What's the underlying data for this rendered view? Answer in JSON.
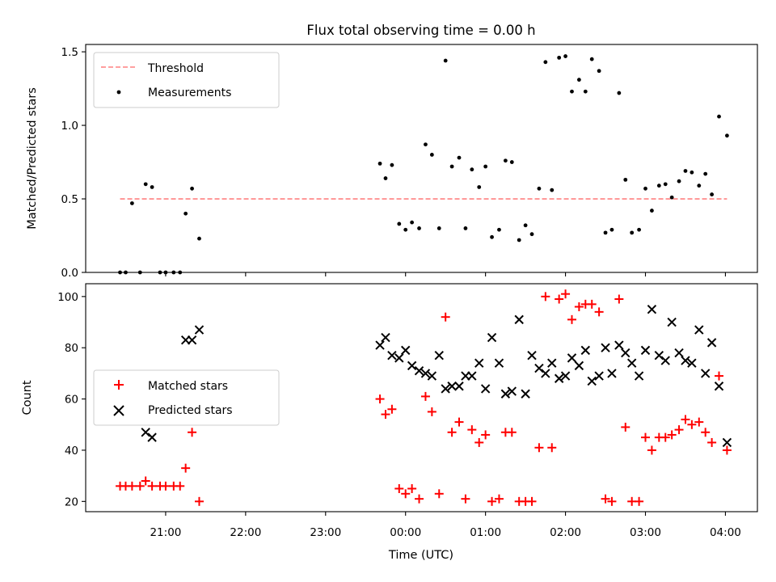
{
  "title": "Flux total observing time = 0.00 h",
  "x_label": "Time (UTC)",
  "x_tick_labels": [
    "21:00",
    "22:00",
    "23:00",
    "00:00",
    "01:00",
    "02:00",
    "03:00",
    "04:00"
  ],
  "colors": {
    "threshold": "#ff8080",
    "measurements": "#000000",
    "matched": "#ff0000",
    "predicted": "#000000"
  },
  "chart_data": [
    {
      "type": "scatter",
      "ylabel": "Matched/Predicted stars",
      "xlabel": "",
      "x_unit": "hours since 20:00 UTC",
      "xlim": [
        0.0,
        8.4
      ],
      "ylim": [
        0.0,
        1.55
      ],
      "y_ticks": [
        "0.0",
        "0.5",
        "1.0",
        "1.5"
      ],
      "grid": false,
      "legend_position": "top-left",
      "threshold": {
        "name": "Threshold",
        "value": 0.5,
        "x_range": [
          0.43,
          8.02
        ],
        "style": "dashed"
      },
      "series": [
        {
          "name": "Measurements",
          "points": [
            [
              0.43,
              0.0
            ],
            [
              0.5,
              0.0
            ],
            [
              0.58,
              0.47
            ],
            [
              0.68,
              0.0
            ],
            [
              0.75,
              0.6
            ],
            [
              0.83,
              0.58
            ],
            [
              0.93,
              0.0
            ],
            [
              1.0,
              0.0
            ],
            [
              1.1,
              0.0
            ],
            [
              1.18,
              0.0
            ],
            [
              1.25,
              0.4
            ],
            [
              1.33,
              0.57
            ],
            [
              1.42,
              0.23
            ],
            [
              3.68,
              0.74
            ],
            [
              3.75,
              0.64
            ],
            [
              3.83,
              0.73
            ],
            [
              3.92,
              0.33
            ],
            [
              4.0,
              0.29
            ],
            [
              4.08,
              0.34
            ],
            [
              4.17,
              0.3
            ],
            [
              4.25,
              0.87
            ],
            [
              4.33,
              0.8
            ],
            [
              4.42,
              0.3
            ],
            [
              4.5,
              1.44
            ],
            [
              4.58,
              0.72
            ],
            [
              4.67,
              0.78
            ],
            [
              4.75,
              0.3
            ],
            [
              4.83,
              0.7
            ],
            [
              4.92,
              0.58
            ],
            [
              5.0,
              0.72
            ],
            [
              5.08,
              0.24
            ],
            [
              5.17,
              0.29
            ],
            [
              5.25,
              0.76
            ],
            [
              5.33,
              0.75
            ],
            [
              5.42,
              0.22
            ],
            [
              5.5,
              0.32
            ],
            [
              5.58,
              0.26
            ],
            [
              5.67,
              0.57
            ],
            [
              5.75,
              1.43
            ],
            [
              5.83,
              0.56
            ],
            [
              5.92,
              1.46
            ],
            [
              6.0,
              1.47
            ],
            [
              6.08,
              1.23
            ],
            [
              6.17,
              1.31
            ],
            [
              6.25,
              1.23
            ],
            [
              6.33,
              1.45
            ],
            [
              6.42,
              1.37
            ],
            [
              6.5,
              0.27
            ],
            [
              6.58,
              0.29
            ],
            [
              6.67,
              1.22
            ],
            [
              6.75,
              0.63
            ],
            [
              6.83,
              0.27
            ],
            [
              6.92,
              0.29
            ],
            [
              7.0,
              0.57
            ],
            [
              7.08,
              0.42
            ],
            [
              7.17,
              0.59
            ],
            [
              7.25,
              0.6
            ],
            [
              7.33,
              0.51
            ],
            [
              7.42,
              0.62
            ],
            [
              7.5,
              0.69
            ],
            [
              7.58,
              0.68
            ],
            [
              7.67,
              0.59
            ],
            [
              7.75,
              0.67
            ],
            [
              7.83,
              0.53
            ],
            [
              7.92,
              1.06
            ],
            [
              8.02,
              0.93
            ]
          ]
        }
      ]
    },
    {
      "type": "scatter",
      "ylabel": "Count",
      "xlabel": "Time (UTC)",
      "x_unit": "hours since 20:00 UTC",
      "xlim": [
        0.0,
        8.4
      ],
      "ylim": [
        16,
        105
      ],
      "y_ticks": [
        "20",
        "40",
        "60",
        "80",
        "100"
      ],
      "grid": false,
      "legend_position": "center-left",
      "series": [
        {
          "name": "Matched stars",
          "marker": "plus",
          "points": [
            [
              0.43,
              26
            ],
            [
              0.5,
              26
            ],
            [
              0.58,
              26
            ],
            [
              0.68,
              26
            ],
            [
              0.75,
              28
            ],
            [
              0.83,
              26
            ],
            [
              0.93,
              26
            ],
            [
              1.0,
              26
            ],
            [
              1.1,
              26
            ],
            [
              1.18,
              26
            ],
            [
              1.25,
              33
            ],
            [
              1.33,
              47
            ],
            [
              1.42,
              20
            ],
            [
              3.68,
              60
            ],
            [
              3.75,
              54
            ],
            [
              3.83,
              56
            ],
            [
              3.92,
              25
            ],
            [
              4.0,
              23
            ],
            [
              4.08,
              25
            ],
            [
              4.17,
              21
            ],
            [
              4.25,
              61
            ],
            [
              4.33,
              55
            ],
            [
              4.42,
              23
            ],
            [
              4.5,
              92
            ],
            [
              4.58,
              47
            ],
            [
              4.67,
              51
            ],
            [
              4.75,
              21
            ],
            [
              4.83,
              48
            ],
            [
              4.92,
              43
            ],
            [
              5.0,
              46
            ],
            [
              5.08,
              20
            ],
            [
              5.17,
              21
            ],
            [
              5.25,
              47
            ],
            [
              5.33,
              47
            ],
            [
              5.42,
              20
            ],
            [
              5.5,
              20
            ],
            [
              5.58,
              20
            ],
            [
              5.67,
              41
            ],
            [
              5.75,
              100
            ],
            [
              5.83,
              41
            ],
            [
              5.92,
              99
            ],
            [
              6.0,
              101
            ],
            [
              6.08,
              91
            ],
            [
              6.17,
              96
            ],
            [
              6.25,
              97
            ],
            [
              6.33,
              97
            ],
            [
              6.42,
              94
            ],
            [
              6.5,
              21
            ],
            [
              6.58,
              20
            ],
            [
              6.67,
              99
            ],
            [
              6.75,
              49
            ],
            [
              6.83,
              20
            ],
            [
              6.92,
              20
            ],
            [
              7.0,
              45
            ],
            [
              7.08,
              40
            ],
            [
              7.17,
              45
            ],
            [
              7.25,
              45
            ],
            [
              7.33,
              46
            ],
            [
              7.42,
              48
            ],
            [
              7.5,
              52
            ],
            [
              7.58,
              50
            ],
            [
              7.67,
              51
            ],
            [
              7.75,
              47
            ],
            [
              7.83,
              43
            ],
            [
              7.92,
              69
            ],
            [
              8.02,
              40
            ]
          ]
        },
        {
          "name": "Predicted stars",
          "marker": "x",
          "points": [
            [
              1.25,
              83
            ],
            [
              1.33,
              83
            ],
            [
              1.42,
              87
            ],
            [
              0.75,
              47
            ],
            [
              0.83,
              45
            ],
            [
              3.68,
              81
            ],
            [
              3.75,
              84
            ],
            [
              3.83,
              77
            ],
            [
              3.92,
              76
            ],
            [
              4.0,
              79
            ],
            [
              4.08,
              73
            ],
            [
              4.17,
              71
            ],
            [
              4.25,
              70
            ],
            [
              4.33,
              69
            ],
            [
              4.42,
              77
            ],
            [
              4.5,
              64
            ],
            [
              4.58,
              65
            ],
            [
              4.67,
              65
            ],
            [
              4.75,
              69
            ],
            [
              4.83,
              69
            ],
            [
              4.92,
              74
            ],
            [
              5.0,
              64
            ],
            [
              5.08,
              84
            ],
            [
              5.17,
              74
            ],
            [
              5.25,
              62
            ],
            [
              5.33,
              63
            ],
            [
              5.42,
              91
            ],
            [
              5.5,
              62
            ],
            [
              5.58,
              77
            ],
            [
              5.67,
              72
            ],
            [
              5.75,
              70
            ],
            [
              5.83,
              74
            ],
            [
              5.92,
              68
            ],
            [
              6.0,
              69
            ],
            [
              6.08,
              76
            ],
            [
              6.17,
              73
            ],
            [
              6.25,
              79
            ],
            [
              6.33,
              67
            ],
            [
              6.42,
              69
            ],
            [
              6.5,
              80
            ],
            [
              6.58,
              70
            ],
            [
              6.67,
              81
            ],
            [
              6.75,
              78
            ],
            [
              6.83,
              74
            ],
            [
              6.92,
              69
            ],
            [
              7.0,
              79
            ],
            [
              7.08,
              95
            ],
            [
              7.17,
              77
            ],
            [
              7.25,
              75
            ],
            [
              7.33,
              90
            ],
            [
              7.42,
              78
            ],
            [
              7.5,
              75
            ],
            [
              7.58,
              74
            ],
            [
              7.67,
              87
            ],
            [
              7.75,
              70
            ],
            [
              7.83,
              82
            ],
            [
              7.92,
              65
            ],
            [
              8.02,
              43
            ]
          ]
        }
      ]
    }
  ]
}
